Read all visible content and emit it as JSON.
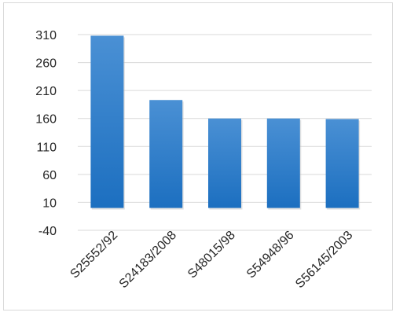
{
  "chart_data": {
    "type": "bar",
    "title": "",
    "xlabel": "",
    "ylabel": "",
    "categories": [
      "S25552/92",
      "S24183/2008",
      "S48015/98",
      "S54948/96",
      "S56145/2003"
    ],
    "values": [
      308,
      193,
      160,
      160,
      159
    ],
    "ylim": [
      -40,
      310
    ],
    "yticks": [
      -40,
      10,
      60,
      110,
      160,
      210,
      260,
      310
    ],
    "grid": true,
    "legend": "none",
    "colors": {
      "bar_top": "#4a90d4",
      "bar_bottom": "#1c6fc0",
      "grid": "#d9d9d9",
      "text": "#262626",
      "shadow": "#bfbfbf"
    }
  }
}
